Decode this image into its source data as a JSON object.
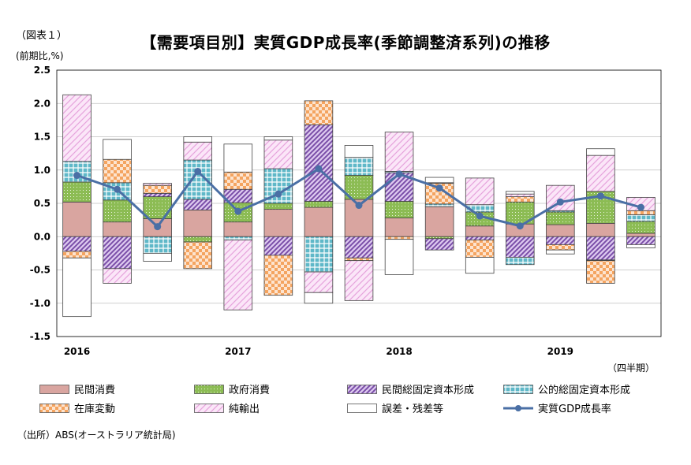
{
  "figure_label": "（図表１）",
  "title": "【需要項目別】実質GDP成長率(季節調整済系列)の推移",
  "unit_label": "(前期比,%)",
  "period_label": "（四半期）",
  "source": "（出所）ABS(オーストラリア統計局)",
  "colors": {
    "private_consumption": "#d9a5a0",
    "government_consumption": "#8cbc54",
    "private_investment": "#9b6cc0",
    "public_investment": "#5fb8c8",
    "inventory": "#f4b183",
    "net_exports": "#f2c6ee",
    "discrepancy": "#ffffff",
    "gdp_line": "#4a6fa5"
  },
  "chart_data": {
    "type": "bar",
    "stacked": true,
    "x_tick_labels": [
      "2016",
      "",
      "",
      "",
      "2017",
      "",
      "",
      "",
      "2018",
      "",
      "",
      "",
      "2019",
      "",
      ""
    ],
    "yticks": [
      "2.5",
      "2.0",
      "1.5",
      "1.0",
      "0.5",
      "0.0",
      "-0.5",
      "-1.0",
      "-1.5"
    ],
    "ylim": [
      -1.5,
      2.5
    ],
    "grid": true,
    "legend_position": "bottom",
    "series": [
      {
        "key": "private_consumption",
        "name": "民間消費",
        "values": [
          0.52,
          0.22,
          0.27,
          0.4,
          0.22,
          0.41,
          0.44,
          0.56,
          0.28,
          0.45,
          0.16,
          0.19,
          0.18,
          0.2,
          0.05
        ]
      },
      {
        "key": "government_consumption",
        "name": "政府消費",
        "values": [
          0.3,
          0.33,
          0.33,
          -0.08,
          0.29,
          0.09,
          0.09,
          0.36,
          0.25,
          -0.03,
          0.21,
          0.33,
          0.19,
          0.48,
          0.18
        ]
      },
      {
        "key": "private_investment",
        "name": "民間総固定資本形成",
        "values": [
          -0.22,
          -0.48,
          0.05,
          0.16,
          0.2,
          -0.28,
          1.15,
          -0.32,
          0.43,
          -0.17,
          -0.05,
          -0.31,
          -0.12,
          -0.35,
          -0.12
        ]
      },
      {
        "key": "public_investment",
        "name": "公的総固定資本形成",
        "values": [
          0.31,
          0.26,
          -0.25,
          0.59,
          -0.05,
          0.52,
          -0.53,
          0.27,
          0.02,
          0.04,
          0.11,
          -0.11,
          0.02,
          -0.01,
          0.1
        ]
      },
      {
        "key": "inventory",
        "name": "在庫変動",
        "values": [
          -0.1,
          0.35,
          0.12,
          -0.4,
          0.26,
          -0.6,
          0.36,
          -0.04,
          -0.04,
          0.31,
          -0.26,
          0.08,
          -0.08,
          -0.34,
          0.06
        ]
      },
      {
        "key": "net_exports",
        "name": "純輸出",
        "values": [
          1.0,
          -0.22,
          0.03,
          0.27,
          -1.05,
          0.43,
          -0.31,
          -0.6,
          0.59,
          0.01,
          0.4,
          0.04,
          0.38,
          0.54,
          0.2
        ]
      },
      {
        "key": "discrepancy",
        "name": "誤差・残差等",
        "values": [
          -0.88,
          0.3,
          -0.12,
          0.08,
          0.42,
          0.05,
          -0.16,
          0.18,
          -0.53,
          0.08,
          -0.24,
          0.04,
          -0.06,
          0.1,
          -0.05
        ]
      }
    ],
    "line": {
      "key": "gdp_line",
      "name": "実質GDP成長率",
      "values": [
        0.92,
        0.71,
        0.15,
        0.98,
        0.38,
        0.64,
        1.02,
        0.47,
        0.94,
        0.73,
        0.31,
        0.16,
        0.52,
        0.61,
        0.44
      ]
    }
  }
}
